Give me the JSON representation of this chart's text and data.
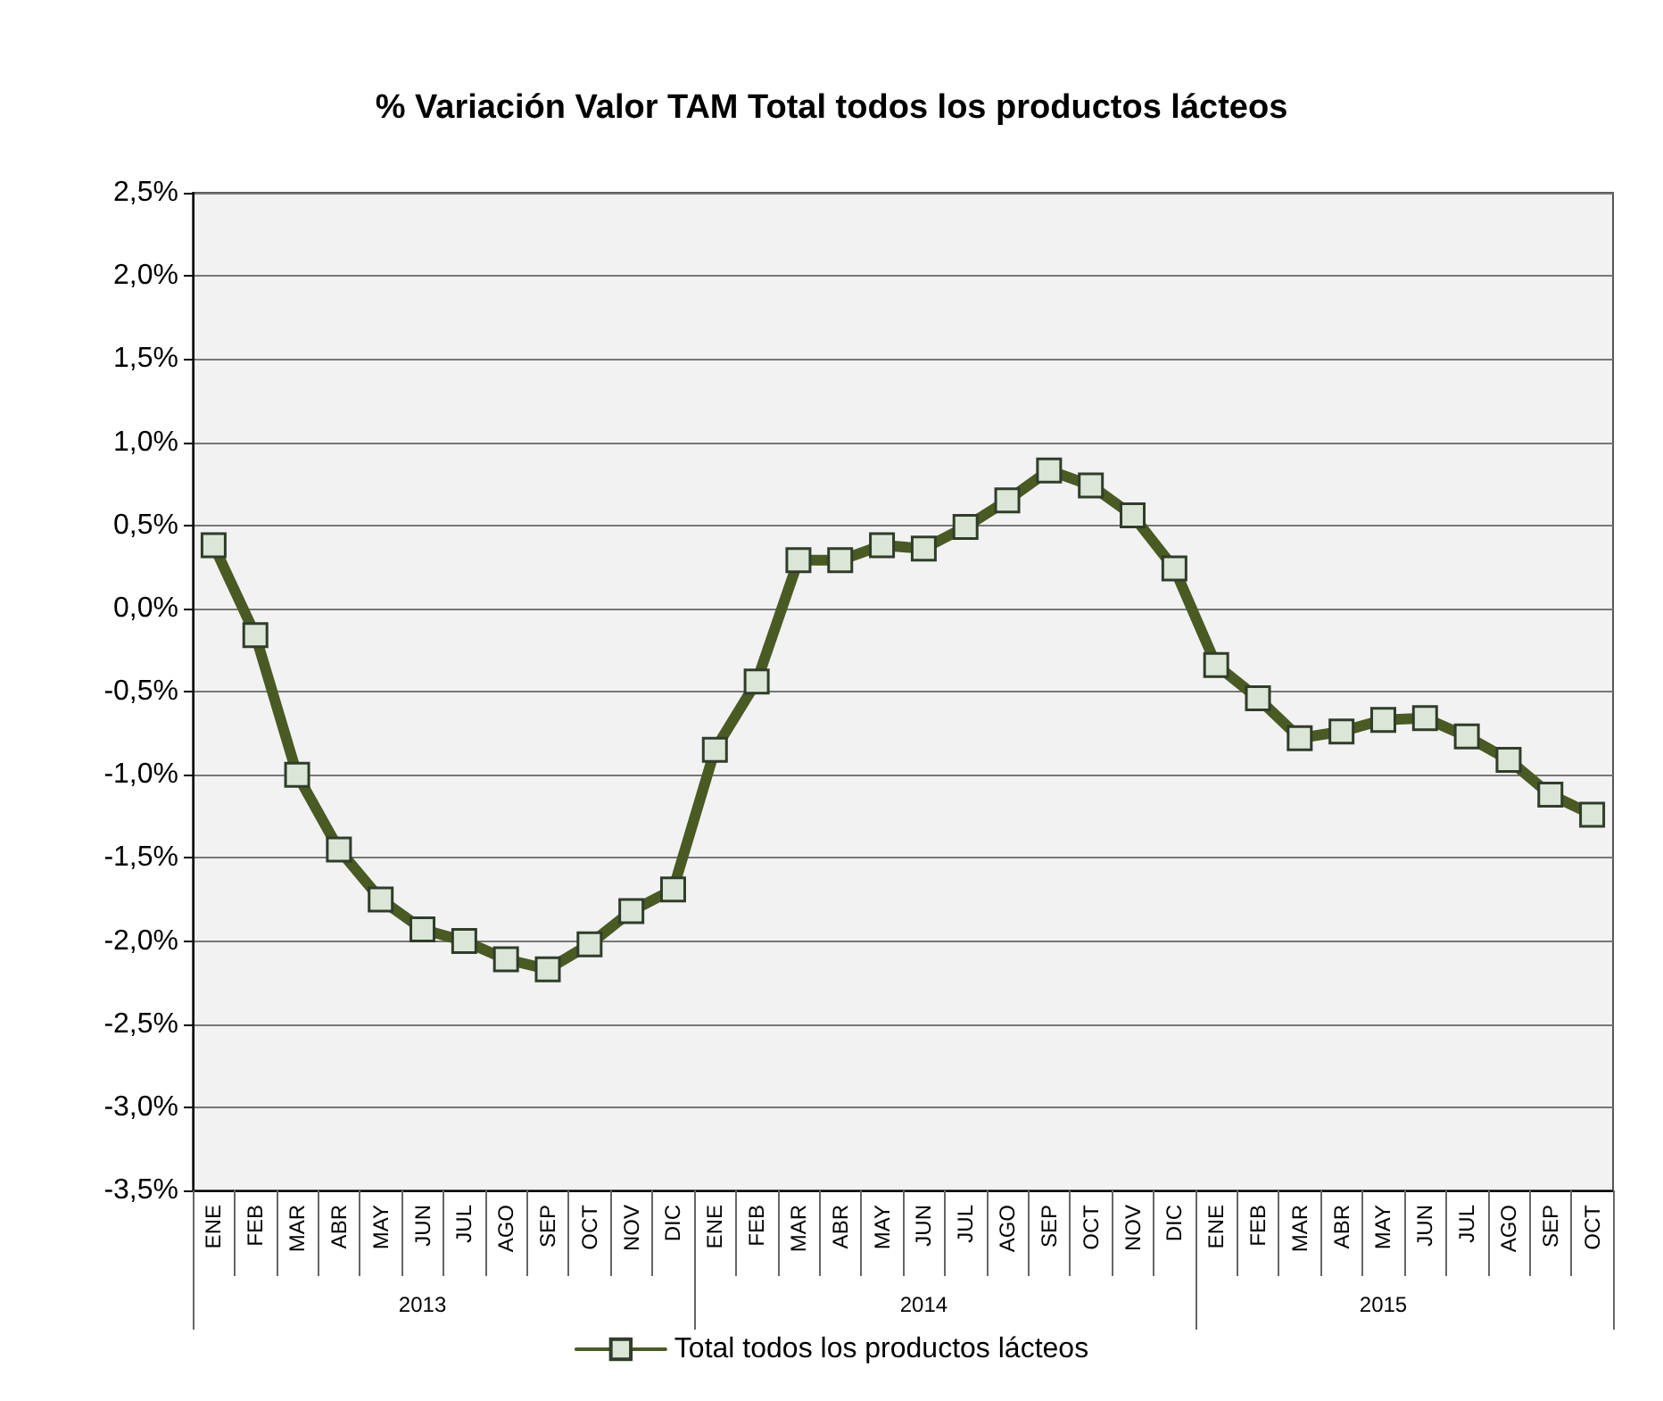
{
  "chart_data": {
    "type": "line",
    "title": "% Variación Valor TAM Total todos los productos lácteos",
    "categories": [
      "ENE",
      "FEB",
      "MAR",
      "ABR",
      "MAY",
      "JUN",
      "JUL",
      "AGO",
      "SEP",
      "OCT",
      "NOV",
      "DIC",
      "ENE",
      "FEB",
      "MAR",
      "ABR",
      "MAY",
      "JUN",
      "JUL",
      "AGO",
      "SEP",
      "OCT",
      "NOV",
      "DIC",
      "ENE",
      "FEB",
      "MAR",
      "ABR",
      "MAY",
      "JUN",
      "JUL",
      "AGO",
      "SEP",
      "OCT"
    ],
    "series": [
      {
        "name": "Total todos los productos lácteos",
        "color": "#4a5a23",
        "values": [
          0.38,
          -0.16,
          -1.0,
          -1.45,
          -1.75,
          -1.93,
          -2.0,
          -2.11,
          -2.17,
          -2.02,
          -1.82,
          -1.69,
          -0.85,
          -0.44,
          0.29,
          0.29,
          0.38,
          0.36,
          0.49,
          0.65,
          0.83,
          0.74,
          0.56,
          0.24,
          -0.34,
          -0.54,
          -0.78,
          -0.74,
          -0.67,
          -0.66,
          -0.77,
          -0.91,
          -1.12,
          -1.24
        ]
      }
    ],
    "annotations": [
      "2013",
      "2014",
      "2015"
    ],
    "ylim": [
      -3.5,
      2.5
    ],
    "yticks": [
      {
        "value": -3.5,
        "label": "-3,5%"
      },
      {
        "value": -3.0,
        "label": "-3,0%"
      },
      {
        "value": -2.5,
        "label": "-2,5%"
      },
      {
        "value": -2.0,
        "label": "-2,0%"
      },
      {
        "value": -1.5,
        "label": "-1,5%"
      },
      {
        "value": -1.0,
        "label": "-1,0%"
      },
      {
        "value": -0.5,
        "label": "-0,5%"
      },
      {
        "value": 0.0,
        "label": "0,0%"
      },
      {
        "value": 0.5,
        "label": "0,5%"
      },
      {
        "value": 1.0,
        "label": "1,0%"
      },
      {
        "value": 1.5,
        "label": "1,5%"
      },
      {
        "value": 2.0,
        "label": "2,0%"
      },
      {
        "value": 2.5,
        "label": "2,5%"
      }
    ],
    "grid": "y",
    "legend": "bottom",
    "marker": "square",
    "line_style": "solid"
  }
}
